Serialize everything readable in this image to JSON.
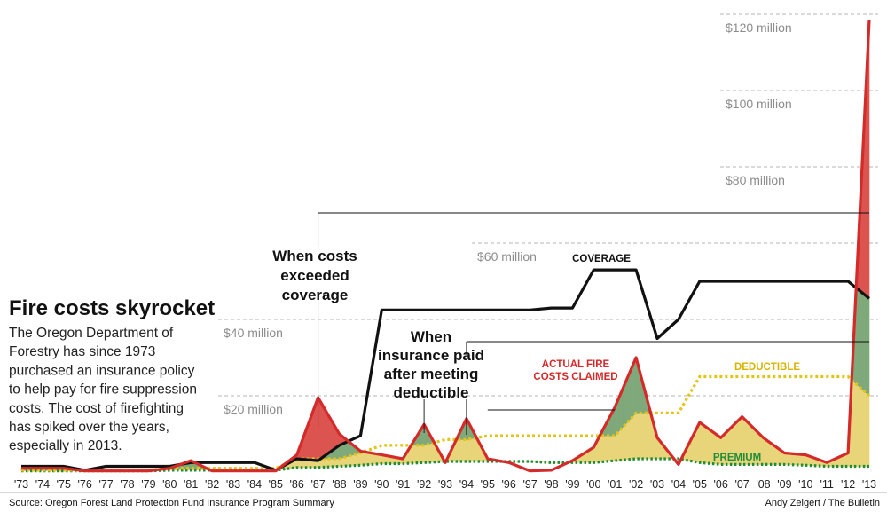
{
  "header": {
    "title": "Fire costs skyrocket",
    "description": [
      "The Oregon Department of",
      "Forestry has since 1973",
      "purchased an insurance policy",
      "to help pay for fire suppression",
      "costs. The cost of firefighting",
      "has spiked over the years,",
      "especially in 2013."
    ]
  },
  "footer": {
    "source": "Source: Oregon Forest Land Protection Fund Insurance Program Summary",
    "credit": "Andy Zeigert / The Bulletin"
  },
  "annotations": {
    "exceeded": [
      "When costs",
      "exceeded",
      "coverage"
    ],
    "paid": [
      "When",
      "insurance paid",
      "after meeting",
      "deductible"
    ],
    "coverage_label": "COVERAGE",
    "deductible_label": "DEDUCTIBLE",
    "premium_label": "PREMIUM",
    "claimed_label": [
      "ACTUAL FIRE",
      "COSTS CLAIMED"
    ]
  },
  "chart_data": {
    "type": "line",
    "x": [
      "'73",
      "'74",
      "'75",
      "'76",
      "'77",
      "'78",
      "'79",
      "'80",
      "'81",
      "'82",
      "'83",
      "'84",
      "'85",
      "'86",
      "'87",
      "'88",
      "'89",
      "'90",
      "'91",
      "'92",
      "'93",
      "'94",
      "'95",
      "'96",
      "'97",
      "'98",
      "'99",
      "'00",
      "'01",
      "'02",
      "'03",
      "'04",
      "'05",
      "'06",
      "'07",
      "'08",
      "'09",
      "'10",
      "'11",
      "'12",
      "'13"
    ],
    "y_ticks": [
      {
        "value": 20,
        "label": "$20 million"
      },
      {
        "value": 40,
        "label": "$40 million"
      },
      {
        "value": 60,
        "label": "$60 million"
      },
      {
        "value": 80,
        "label": "$80 million"
      },
      {
        "value": 100,
        "label": "$100 million"
      },
      {
        "value": 120,
        "label": "$120 million"
      }
    ],
    "ylim": [
      0,
      120
    ],
    "series": [
      {
        "name": "COVERAGE",
        "color": "#111111",
        "style": "solid",
        "values": [
          1.5,
          1.5,
          1.5,
          0.5,
          1.5,
          1.5,
          1.5,
          1.5,
          2.5,
          2.5,
          2.5,
          2.5,
          0.5,
          3.5,
          3.0,
          7.0,
          9.5,
          42.5,
          42.5,
          42.5,
          42.5,
          42.5,
          42.5,
          42.5,
          42.5,
          43.0,
          43.0,
          53.0,
          53.0,
          53.0,
          35.0,
          40.0,
          50.0,
          50.0,
          50.0,
          50.0,
          50.0,
          50.0,
          50.0,
          50.0,
          45.5
        ]
      },
      {
        "name": "DEDUCTIBLE",
        "color": "#e2c419",
        "style": "dotted",
        "values": [
          0.5,
          0.5,
          0.5,
          0.5,
          0.5,
          0.5,
          0.5,
          1.0,
          1.0,
          1.0,
          1.0,
          1.0,
          1.0,
          3.5,
          3.5,
          3.5,
          5.0,
          7.0,
          7.0,
          7.0,
          8.5,
          8.5,
          9.5,
          9.5,
          9.5,
          9.5,
          9.5,
          9.5,
          9.5,
          15.5,
          15.5,
          15.5,
          25.0,
          25.0,
          25.0,
          25.0,
          25.0,
          25.0,
          25.0,
          25.0,
          20.0
        ]
      },
      {
        "name": "PREMIUM",
        "color": "#1f8c3a",
        "style": "dotted",
        "values": [
          0.3,
          0.3,
          0.3,
          0.3,
          0.3,
          0.3,
          0.3,
          0.5,
          0.5,
          0.5,
          0.5,
          0.5,
          0.5,
          1.2,
          1.2,
          1.5,
          1.8,
          2.2,
          2.2,
          2.5,
          2.8,
          2.8,
          2.8,
          2.8,
          2.8,
          2.5,
          2.5,
          2.5,
          3.0,
          3.5,
          3.5,
          3.5,
          2.5,
          2.0,
          2.0,
          2.0,
          2.0,
          1.8,
          1.5,
          1.5,
          1.5
        ]
      },
      {
        "name": "ACTUAL FIRE COSTS CLAIMED",
        "color": "#d42a2a",
        "style": "solid",
        "values": [
          1.0,
          1.0,
          1.0,
          0.3,
          0.3,
          0.3,
          0.3,
          1.0,
          3.0,
          0.3,
          0.3,
          0.3,
          0.3,
          4.5,
          19.5,
          10.0,
          5.5,
          4.5,
          3.5,
          12.5,
          2.5,
          14.0,
          3.5,
          2.5,
          0.3,
          0.5,
          3.0,
          6.5,
          17.0,
          30.0,
          9.0,
          2.0,
          13.0,
          9.0,
          14.5,
          9.0,
          5.0,
          4.5,
          2.5,
          5.0,
          118.5
        ]
      }
    ]
  }
}
